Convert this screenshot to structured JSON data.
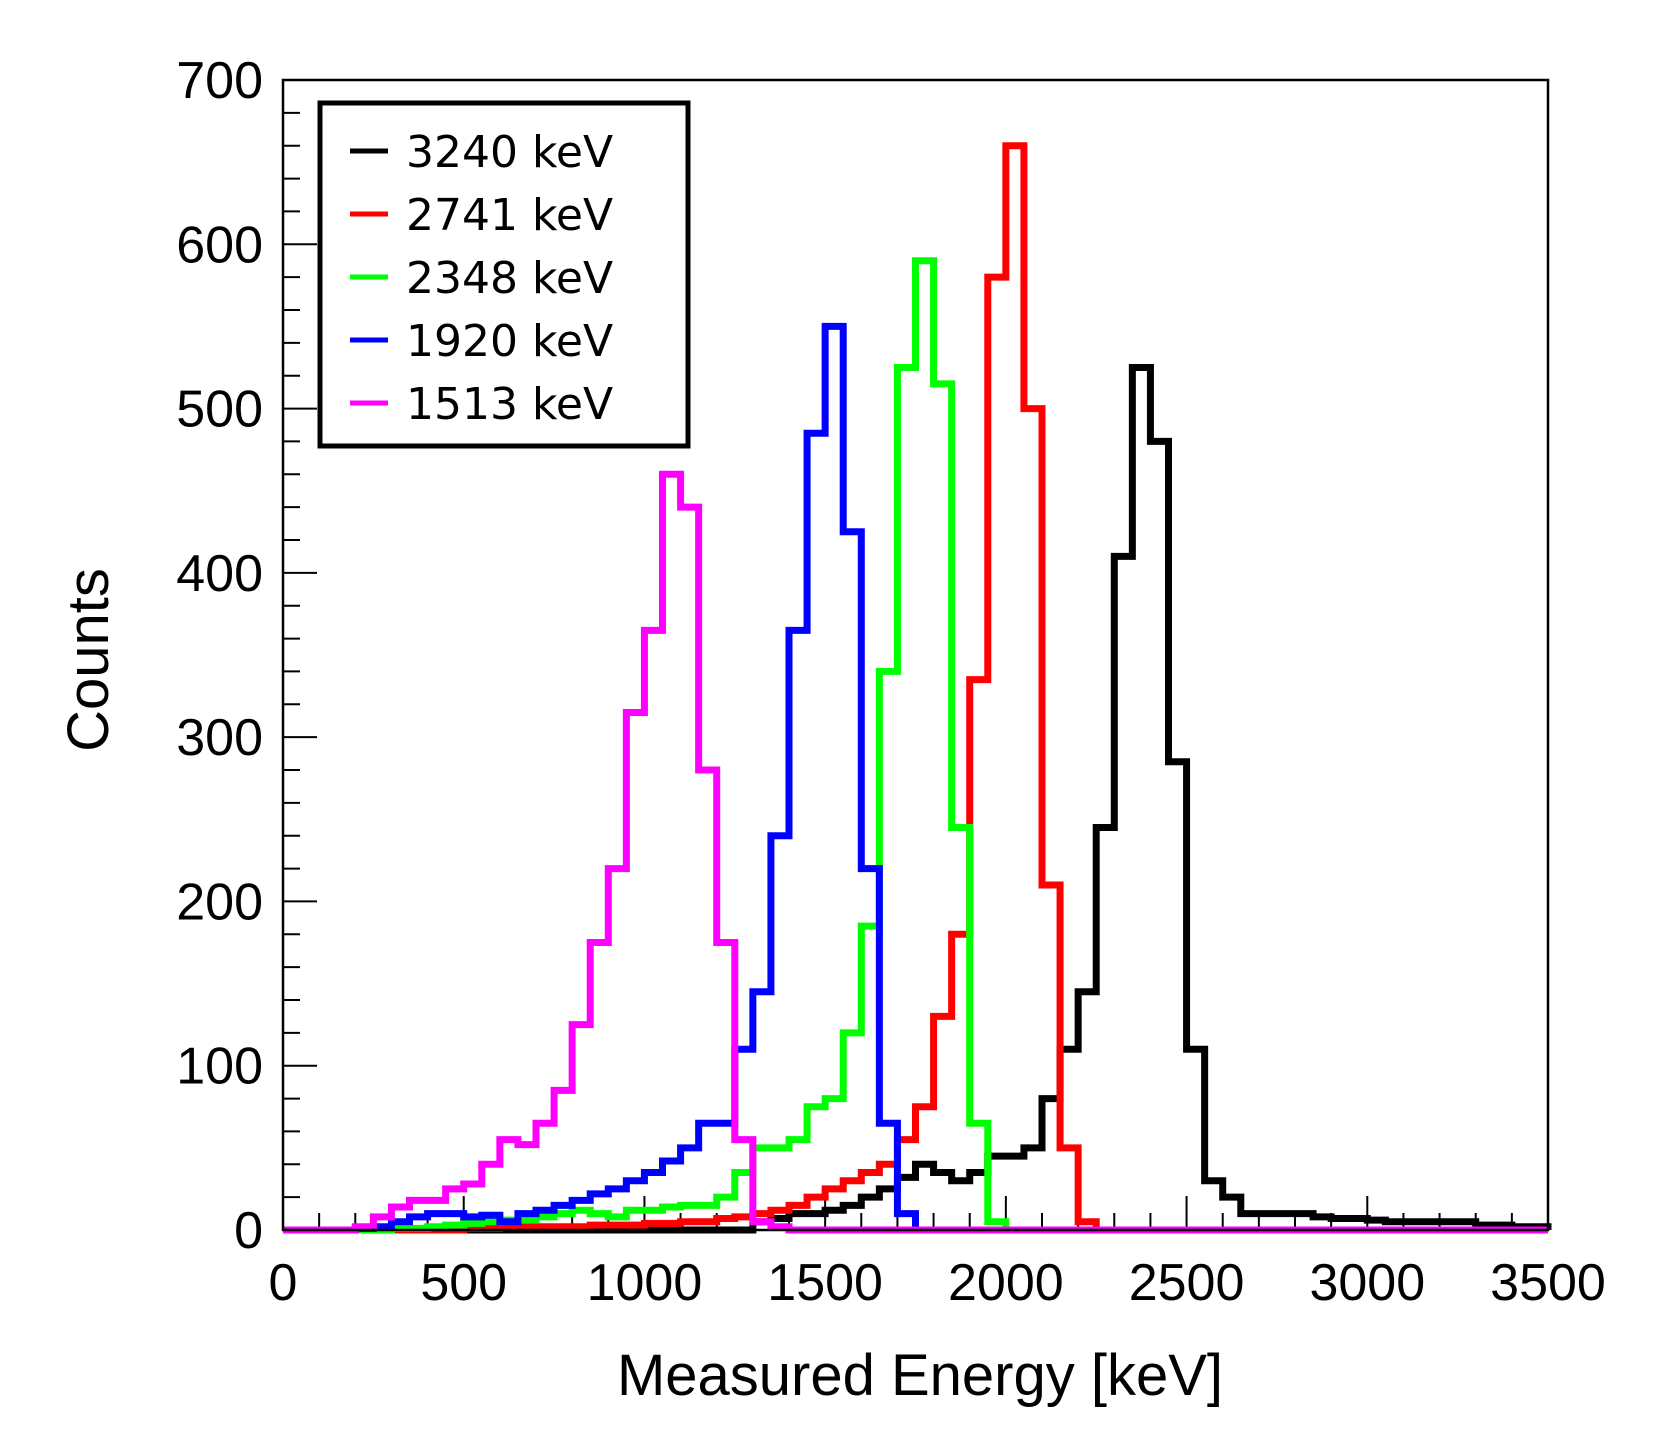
{
  "chart_data": {
    "type": "step-histogram",
    "xlabel": "Measured Energy [keV]",
    "ylabel": "Counts",
    "xlim": [
      0,
      3500
    ],
    "ylim": [
      0,
      700
    ],
    "x_ticks": [
      "0",
      "500",
      "1000",
      "1500",
      "2000",
      "2500",
      "3000",
      "3500"
    ],
    "y_ticks": [
      "0",
      "100",
      "200",
      "300",
      "400",
      "500",
      "600",
      "700"
    ],
    "bin_width": 50,
    "grid": false,
    "legend_position": "top-left",
    "series": [
      {
        "name": "3240 keV",
        "color": "#000000",
        "start": 1300,
        "counts": [
          5,
          7,
          10,
          10,
          12,
          15,
          20,
          25,
          32,
          40,
          35,
          30,
          35,
          45,
          45,
          50,
          80,
          110,
          145,
          245,
          410,
          525,
          480,
          285,
          110,
          30,
          20,
          10,
          10,
          10,
          10,
          8,
          7,
          7,
          6,
          5,
          5,
          5,
          5,
          5,
          3,
          3,
          2,
          2
        ]
      },
      {
        "name": "2741 keV",
        "color": "#ff0000",
        "start": 500,
        "counts": [
          1,
          1,
          2,
          2,
          2,
          2,
          2,
          3,
          3,
          3,
          4,
          4,
          5,
          5,
          7,
          8,
          10,
          12,
          15,
          20,
          25,
          30,
          35,
          40,
          55,
          75,
          130,
          180,
          335,
          580,
          660,
          500,
          210,
          50,
          5,
          0
        ]
      },
      {
        "name": "2348 keV",
        "color": "#00ff00",
        "start": 300,
        "counts": [
          1,
          1,
          2,
          3,
          4,
          5,
          6,
          6,
          8,
          10,
          12,
          10,
          8,
          12,
          12,
          14,
          15,
          15,
          20,
          35,
          50,
          50,
          55,
          75,
          80,
          120,
          185,
          340,
          525,
          590,
          515,
          245,
          65,
          5,
          0
        ]
      },
      {
        "name": "1920 keV",
        "color": "#0000ff",
        "start": 200,
        "counts": [
          1,
          2,
          5,
          8,
          10,
          10,
          8,
          9,
          5,
          10,
          12,
          15,
          18,
          22,
          25,
          30,
          35,
          42,
          50,
          65,
          65,
          110,
          145,
          240,
          365,
          485,
          550,
          425,
          220,
          65,
          10,
          0
        ]
      },
      {
        "name": "1513 keV",
        "color": "#ff00ff",
        "start": 200,
        "counts": [
          2,
          8,
          14,
          18,
          18,
          25,
          28,
          40,
          55,
          52,
          65,
          85,
          125,
          175,
          220,
          315,
          365,
          460,
          440,
          280,
          175,
          55,
          5,
          2,
          0
        ]
      }
    ]
  }
}
